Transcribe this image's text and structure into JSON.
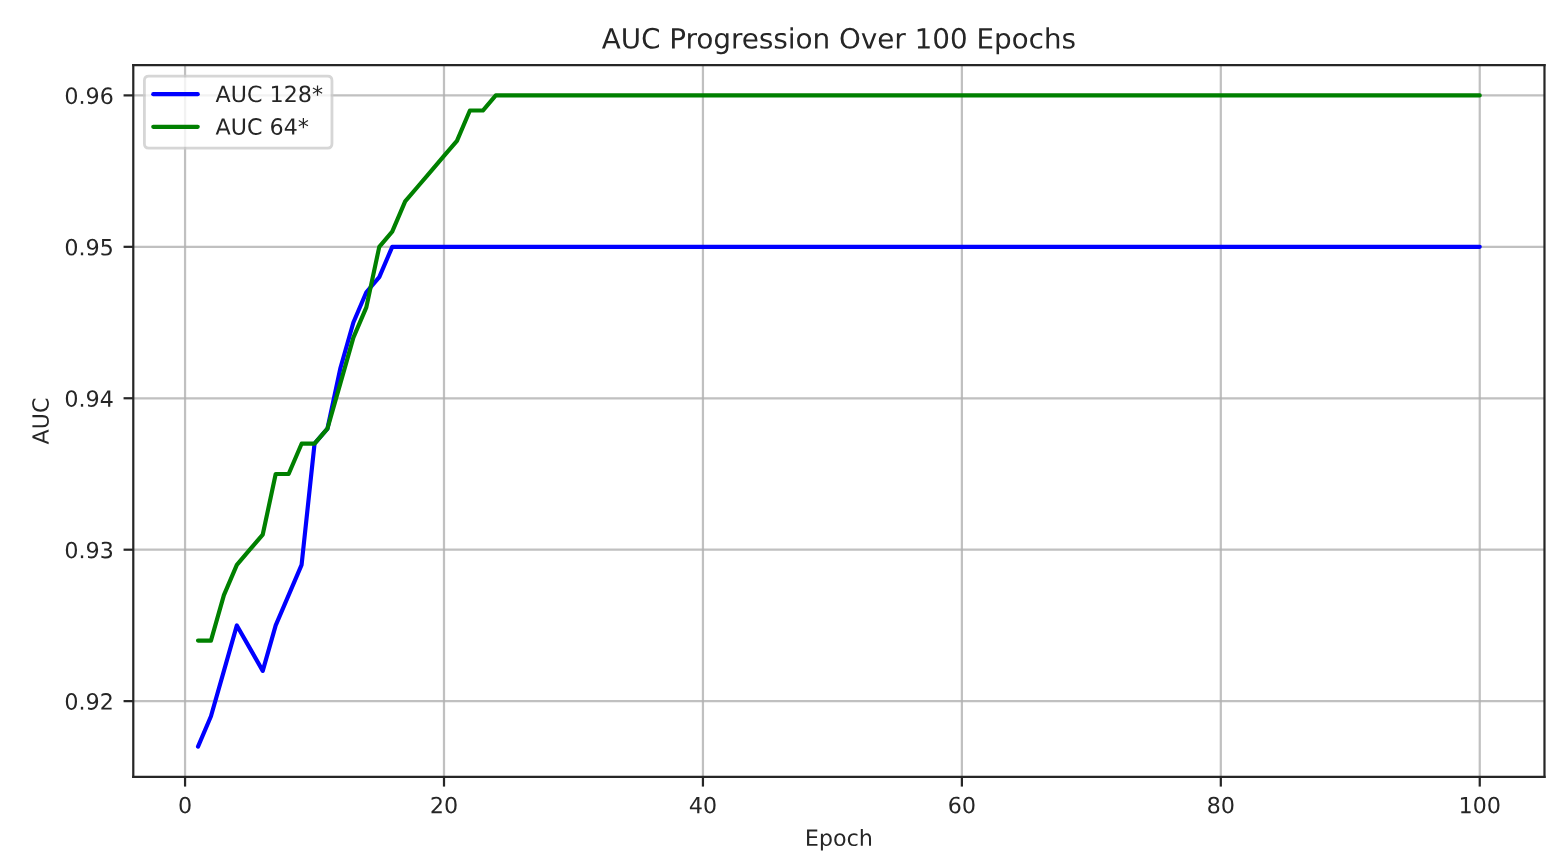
{
  "chart_data": {
    "type": "line",
    "title": "AUC Progression Over 100 Epochs",
    "xlabel": "Epoch",
    "ylabel": "AUC",
    "series": [
      {
        "name": "AUC 128*",
        "color": "#0000ff",
        "x": [
          1,
          2,
          3,
          4,
          5,
          6,
          7,
          8,
          9,
          10,
          11,
          12,
          13,
          14,
          15,
          16,
          100
        ],
        "values": [
          0.917,
          0.919,
          0.922,
          0.925,
          0.9235,
          0.922,
          0.925,
          0.927,
          0.929,
          0.937,
          0.938,
          0.942,
          0.945,
          0.947,
          0.948,
          0.95,
          0.95
        ]
      },
      {
        "name": "AUC 64*",
        "color": "#008000",
        "x": [
          1,
          2,
          3,
          4,
          5,
          6,
          7,
          8,
          9,
          10,
          11,
          12,
          13,
          14,
          15,
          16,
          17,
          18,
          19,
          20,
          21,
          22,
          23,
          24,
          100
        ],
        "values": [
          0.924,
          0.924,
          0.927,
          0.929,
          0.93,
          0.931,
          0.935,
          0.935,
          0.937,
          0.937,
          0.938,
          0.941,
          0.944,
          0.946,
          0.95,
          0.951,
          0.953,
          0.954,
          0.955,
          0.956,
          0.957,
          0.959,
          0.959,
          0.96,
          0.96
        ]
      }
    ],
    "xlim": [
      -4,
      105
    ],
    "xticks": [
      0,
      20,
      40,
      60,
      80,
      100
    ],
    "ylim": [
      0.915,
      0.962
    ],
    "yticks": [
      0.92,
      0.93,
      0.94,
      0.95,
      0.96
    ],
    "grid": true,
    "legend": "top left",
    "line_style": "solid",
    "marker": "none"
  }
}
